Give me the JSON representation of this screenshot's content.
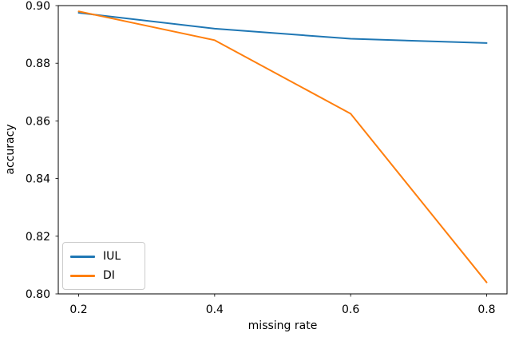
{
  "chart_data": {
    "type": "line",
    "title": "",
    "xlabel": "missing rate",
    "ylabel": "accuracy",
    "x": [
      0.2,
      0.4,
      0.6,
      0.8
    ],
    "series": [
      {
        "name": "IUL",
        "color": "#1f77b4",
        "values": [
          0.8975,
          0.892,
          0.8885,
          0.887
        ]
      },
      {
        "name": "DI",
        "color": "#ff7f0e",
        "values": [
          0.898,
          0.888,
          0.8625,
          0.804
        ]
      }
    ],
    "xlim": [
      0.17,
      0.83
    ],
    "ylim": [
      0.8,
      0.9
    ],
    "xticks": {
      "values": [
        0.2,
        0.4,
        0.6,
        0.8
      ],
      "labels": [
        "0.2",
        "0.4",
        "0.6",
        "0.8"
      ]
    },
    "yticks": {
      "values": [
        0.8,
        0.82,
        0.84,
        0.86,
        0.88,
        0.9
      ],
      "labels": [
        "0.80",
        "0.82",
        "0.84",
        "0.86",
        "0.88",
        "0.90"
      ]
    },
    "grid": false,
    "legend_position": "lower-left"
  },
  "style": {
    "background": "#ffffff",
    "spine_color": "#000000",
    "tick_color": "#000000",
    "text_color": "#000000",
    "legend_border_color": "#cccccc"
  }
}
